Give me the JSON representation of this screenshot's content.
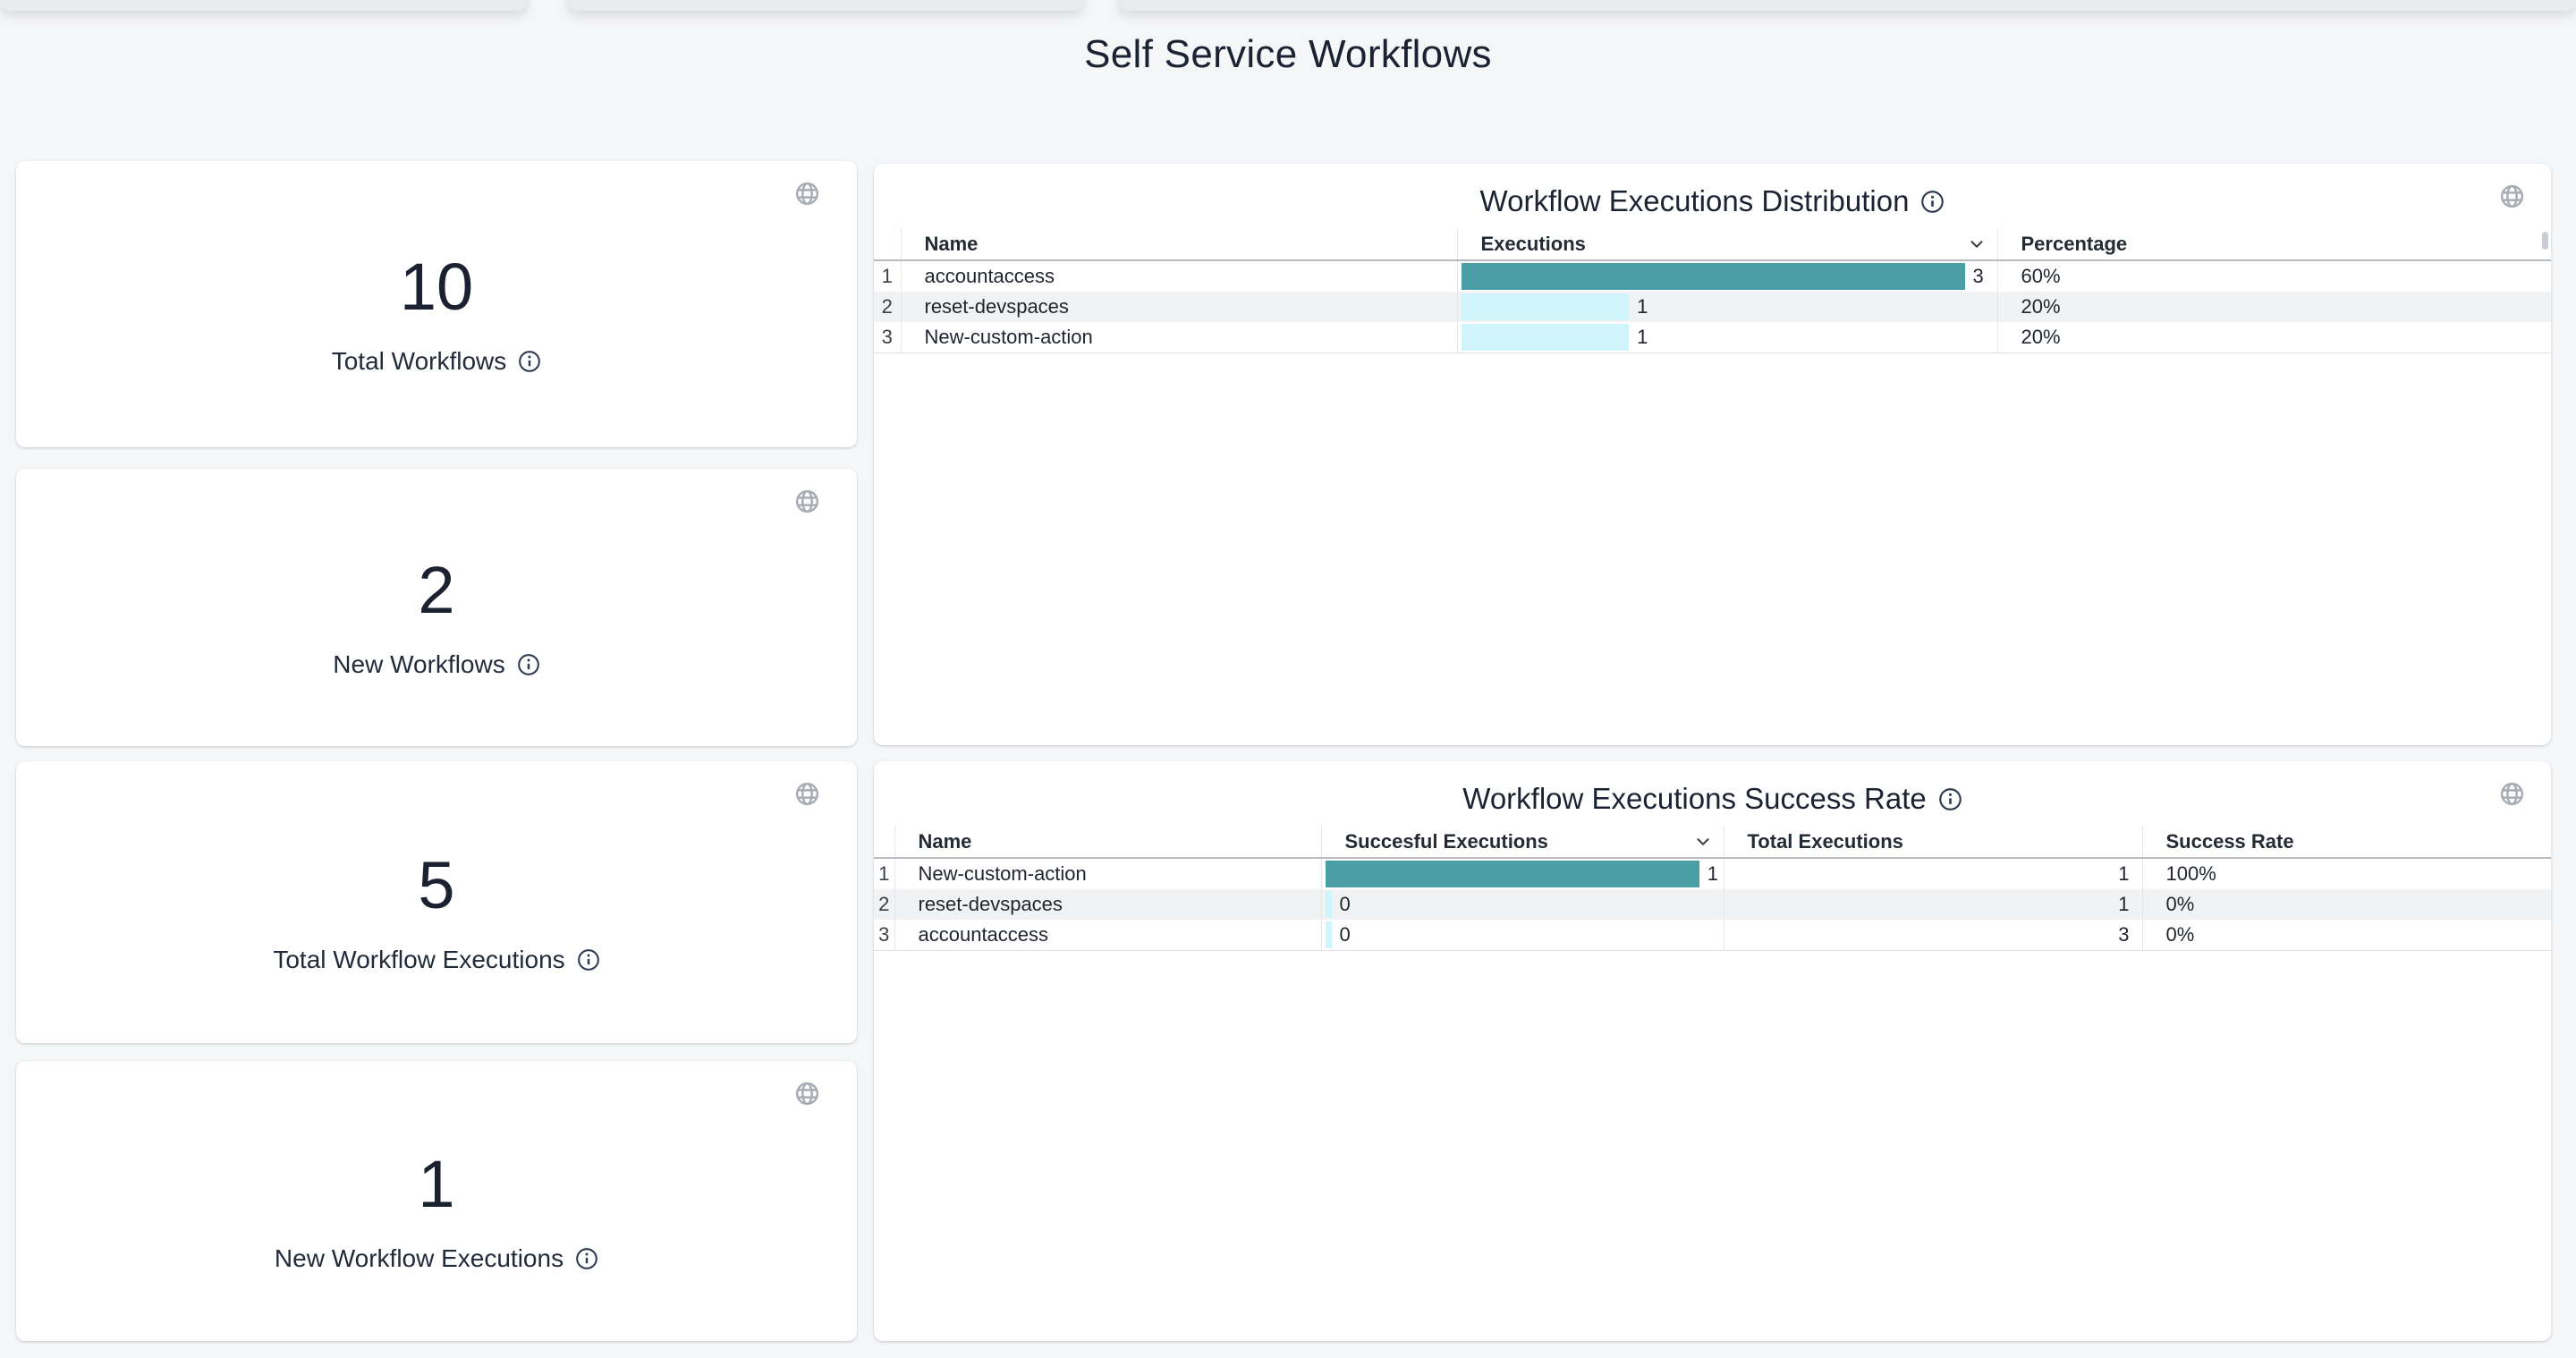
{
  "page_title": "Self Service Workflows",
  "colors": {
    "bar_primary": "#4a9fa7",
    "bar_secondary": "#d0f6fc",
    "title_text": "#1b2333"
  },
  "stat_cards": [
    {
      "value": "10",
      "label": "Total Workflows"
    },
    {
      "value": "2",
      "label": "New Workflows"
    },
    {
      "value": "5",
      "label": "Total Workflow Executions"
    },
    {
      "value": "1",
      "label": "New Workflow Executions"
    }
  ],
  "tables": [
    {
      "title": "Workflow Executions Distribution",
      "columns": [
        "",
        "Name",
        "Executions",
        "Percentage"
      ],
      "sorted_column_label": "Executions",
      "rows": [
        [
          "1",
          "accountaccess",
          "3",
          "60%"
        ],
        [
          "2",
          "reset-devspaces",
          "1",
          "20%"
        ],
        [
          "3",
          "New-custom-action",
          "1",
          "20%"
        ]
      ]
    },
    {
      "title": "Workflow Executions Success Rate",
      "columns": [
        "",
        "Name",
        "Succesful Executions",
        "Total Executions",
        "Success Rate"
      ],
      "sorted_column_label": "Succesful Executions",
      "rows": [
        [
          "1",
          "New-custom-action",
          "1",
          "1",
          "100%"
        ],
        [
          "2",
          "reset-devspaces",
          "0",
          "1",
          "0%"
        ],
        [
          "3",
          "accountaccess",
          "0",
          "3",
          "0%"
        ]
      ]
    }
  ]
}
